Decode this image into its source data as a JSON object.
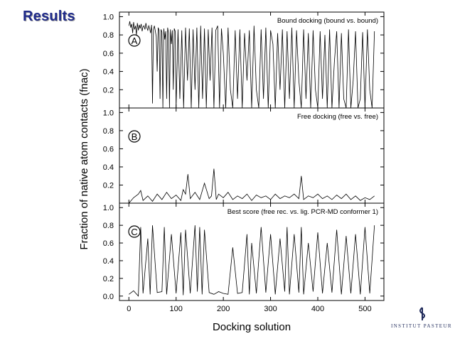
{
  "slide": {
    "title": "Results"
  },
  "logo": {
    "text": "INSTITUT PASTEUR",
    "color": "#1f2a5a"
  },
  "title_color": "#1f2a8a",
  "chart_data": {
    "type": "line",
    "ylabel": "Fraction of native atom contacts (fnac)",
    "xlabel": "Docking solution",
    "xlim": [
      -20,
      540
    ],
    "xticks": [
      0,
      100,
      200,
      300,
      400,
      500
    ],
    "grid": false,
    "legend": "none",
    "line_color": "#000000",
    "panels": [
      {
        "letter": "A",
        "title": "Bound docking (bound vs. bound)",
        "ylim": [
          0,
          1.05
        ],
        "yticks": [
          "0.2",
          "0.4",
          "0.6",
          "0.8",
          "1.0"
        ],
        "series": [
          {
            "x": [
              0,
              2,
              4,
              6,
              8,
              10,
              12,
              14,
              16,
              18,
              20,
              22,
              24,
              26,
              28,
              30,
              32,
              34,
              36,
              38,
              40,
              42,
              44,
              46,
              48,
              50,
              52,
              54,
              56,
              58,
              60,
              62,
              64,
              66,
              68,
              70,
              72,
              74,
              76,
              78,
              80,
              82,
              84,
              86,
              88,
              90,
              92,
              94,
              96,
              98,
              100,
              104,
              108,
              112,
              116,
              120,
              124,
              128,
              132,
              136,
              140,
              144,
              148,
              152,
              156,
              160,
              164,
              168,
              172,
              176,
              180,
              184,
              188,
              192,
              196,
              200,
              205,
              210,
              215,
              220,
              225,
              230,
              235,
              240,
              245,
              250,
              255,
              260,
              265,
              270,
              275,
              280,
              285,
              290,
              295,
              300,
              305,
              310,
              315,
              320,
              325,
              330,
              335,
              340,
              345,
              350,
              355,
              360,
              365,
              370,
              375,
              380,
              385,
              390,
              395,
              400,
              405,
              410,
              415,
              420,
              425,
              430,
              435,
              440,
              445,
              450,
              455,
              460,
              465,
              470,
              475,
              480,
              485,
              490,
              495,
              500,
              505,
              510,
              515,
              520
            ],
            "y": [
              0.9,
              0.95,
              0.88,
              0.92,
              0.82,
              0.94,
              0.86,
              0.9,
              0.8,
              0.93,
              0.85,
              0.91,
              0.87,
              0.92,
              0.84,
              0.89,
              0.9,
              0.86,
              0.93,
              0.88,
              0.85,
              0.9,
              0.87,
              0.82,
              0.91,
              0.05,
              0.86,
              0.9,
              0.84,
              0.78,
              0.4,
              0.88,
              0.85,
              0.1,
              0.86,
              0.83,
              0.0,
              0.87,
              0.75,
              0.84,
              0.1,
              0.88,
              0.82,
              0.0,
              0.86,
              0.7,
              0.85,
              0.2,
              0.87,
              0.84,
              0.0,
              0.86,
              0.1,
              0.85,
              0.0,
              0.88,
              0.3,
              0.87,
              0.0,
              0.86,
              0.2,
              0.88,
              0.0,
              0.9,
              0.1,
              0.87,
              0.0,
              0.86,
              0.3,
              0.88,
              0.0,
              0.85,
              0.9,
              0.0,
              0.87,
              0.6,
              0.0,
              0.88,
              0.2,
              0.0,
              0.85,
              0.1,
              0.86,
              0.0,
              0.82,
              0.3,
              0.85,
              0.0,
              0.9,
              0.2,
              0.0,
              0.86,
              0.1,
              0.88,
              0.0,
              0.85,
              0.7,
              0.0,
              0.82,
              0.2,
              0.86,
              0.0,
              0.84,
              0.1,
              0.88,
              0.0,
              0.85,
              0.3,
              0.0,
              0.86,
              0.1,
              0.82,
              0.0,
              0.85,
              0.2,
              0.0,
              0.84,
              0.1,
              0.8,
              0.0,
              0.86,
              0.0,
              0.5,
              0.84,
              0.0,
              0.82,
              0.1,
              0.0,
              0.86,
              0.0,
              0.3,
              0.84,
              0.0,
              0.1,
              0.83,
              0.0,
              0.86,
              0.2,
              0.0,
              0.84
            ]
          }
        ]
      },
      {
        "letter": "B",
        "title": "Free docking (free vs. free)",
        "ylim": [
          0,
          1.05
        ],
        "yticks": [
          "0.2",
          "0.4",
          "0.6",
          "0.8",
          "1.0"
        ],
        "series": [
          {
            "x": [
              0,
              10,
              20,
              25,
              30,
              40,
              50,
              60,
              70,
              80,
              90,
              100,
              110,
              115,
              120,
              125,
              130,
              140,
              150,
              160,
              170,
              175,
              180,
              185,
              190,
              200,
              210,
              220,
              230,
              240,
              250,
              260,
              270,
              280,
              290,
              300,
              310,
              320,
              330,
              340,
              350,
              360,
              365,
              370,
              380,
              390,
              400,
              410,
              420,
              430,
              440,
              450,
              460,
              470,
              480,
              490,
              500,
              510,
              520
            ],
            "y": [
              0.0,
              0.06,
              0.1,
              0.14,
              0.03,
              0.08,
              0.02,
              0.1,
              0.04,
              0.12,
              0.05,
              0.09,
              0.03,
              0.15,
              0.1,
              0.32,
              0.05,
              0.12,
              0.04,
              0.22,
              0.05,
              0.08,
              0.38,
              0.04,
              0.1,
              0.06,
              0.12,
              0.04,
              0.08,
              0.05,
              0.1,
              0.03,
              0.09,
              0.06,
              0.08,
              0.04,
              0.1,
              0.05,
              0.08,
              0.06,
              0.1,
              0.05,
              0.3,
              0.04,
              0.08,
              0.06,
              0.1,
              0.05,
              0.08,
              0.04,
              0.09,
              0.05,
              0.1,
              0.04,
              0.08,
              0.03,
              0.06,
              0.04,
              0.08
            ]
          }
        ]
      },
      {
        "letter": "C",
        "title": "Best score (free rec. vs. lig. PCR-MD conformer 1)",
        "ylim": [
          -0.05,
          1.05
        ],
        "yticks": [
          "0.0",
          "0.2",
          "0.4",
          "0.6",
          "0.8",
          "1.0"
        ],
        "series": [
          {
            "x": [
              0,
              10,
              20,
              25,
              30,
              40,
              45,
              50,
              60,
              70,
              75,
              80,
              90,
              100,
              110,
              115,
              120,
              130,
              140,
              145,
              150,
              155,
              160,
              170,
              180,
              190,
              200,
              210,
              220,
              230,
              240,
              250,
              255,
              260,
              270,
              280,
              290,
              300,
              310,
              320,
              330,
              335,
              340,
              350,
              360,
              365,
              370,
              380,
              390,
              400,
              410,
              420,
              430,
              440,
              450,
              460,
              470,
              480,
              490,
              500,
              510,
              520
            ],
            "y": [
              0.02,
              0.06,
              0.0,
              0.78,
              0.03,
              0.65,
              0.02,
              0.8,
              0.04,
              0.05,
              0.78,
              0.02,
              0.7,
              0.03,
              0.72,
              0.01,
              0.75,
              0.03,
              0.8,
              0.05,
              0.78,
              0.02,
              0.75,
              0.04,
              0.02,
              0.05,
              0.03,
              0.02,
              0.55,
              0.03,
              0.04,
              0.7,
              0.02,
              0.6,
              0.03,
              0.78,
              0.04,
              0.7,
              0.02,
              0.65,
              0.05,
              0.78,
              0.02,
              0.7,
              0.04,
              0.78,
              0.02,
              0.6,
              0.05,
              0.72,
              0.03,
              0.6,
              0.04,
              0.75,
              0.02,
              0.68,
              0.03,
              0.7,
              0.02,
              0.78,
              0.03,
              0.8
            ]
          }
        ]
      }
    ]
  }
}
